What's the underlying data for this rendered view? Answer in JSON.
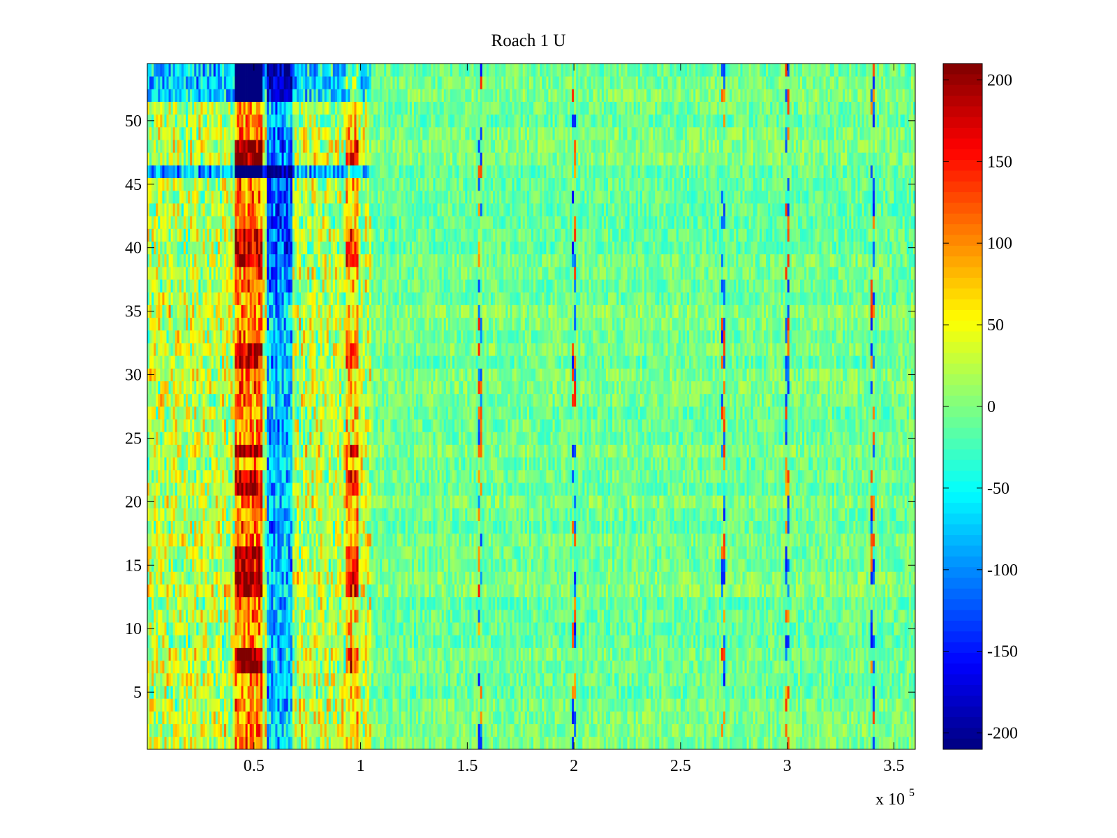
{
  "chart_data": {
    "type": "heatmap",
    "title": "Roach 1 U",
    "xlabel": "",
    "ylabel": "",
    "x_exponent_label": "x 10",
    "x_exponent_power": "5",
    "xlim": [
      0,
      3.6
    ],
    "ylim": [
      0.5,
      54.5
    ],
    "x_ticks": [
      0.5,
      1,
      1.5,
      2,
      2.5,
      3,
      3.5
    ],
    "x_tick_labels": [
      "0.5",
      "1",
      "1.5",
      "2",
      "2.5",
      "3",
      "3.5"
    ],
    "y_ticks": [
      5,
      10,
      15,
      20,
      25,
      30,
      35,
      40,
      45,
      50
    ],
    "y_tick_labels": [
      "5",
      "10",
      "15",
      "20",
      "25",
      "30",
      "35",
      "40",
      "45",
      "50"
    ],
    "rows": 54,
    "colormap": "jet",
    "color_limits": [
      -210,
      210
    ],
    "colorbar": {
      "ticks": [
        200,
        150,
        100,
        50,
        0,
        -50,
        -100,
        -150,
        -200
      ],
      "tick_labels": [
        "200",
        "150",
        "100",
        "50",
        "0",
        "-50",
        "-100",
        "-150",
        "-200"
      ]
    },
    "features": {
      "background_value": -5,
      "background_noise": 28,
      "early_region_x": [
        0,
        1.05
      ],
      "positive_band_x": [
        0.41,
        0.54
      ],
      "negative_band_x": [
        0.56,
        0.68
      ],
      "positive_band2_x": [
        0.93,
        0.99
      ],
      "strong_negative_rows": [
        46,
        52,
        53,
        54
      ],
      "strong_positive_rows": [
        7,
        8,
        13,
        14,
        15,
        16,
        21,
        22,
        24,
        31,
        32,
        39,
        40,
        41,
        47,
        48
      ],
      "sparse_spike_x": [
        1.56,
        2.0,
        2.7,
        3.0,
        3.4
      ]
    }
  }
}
